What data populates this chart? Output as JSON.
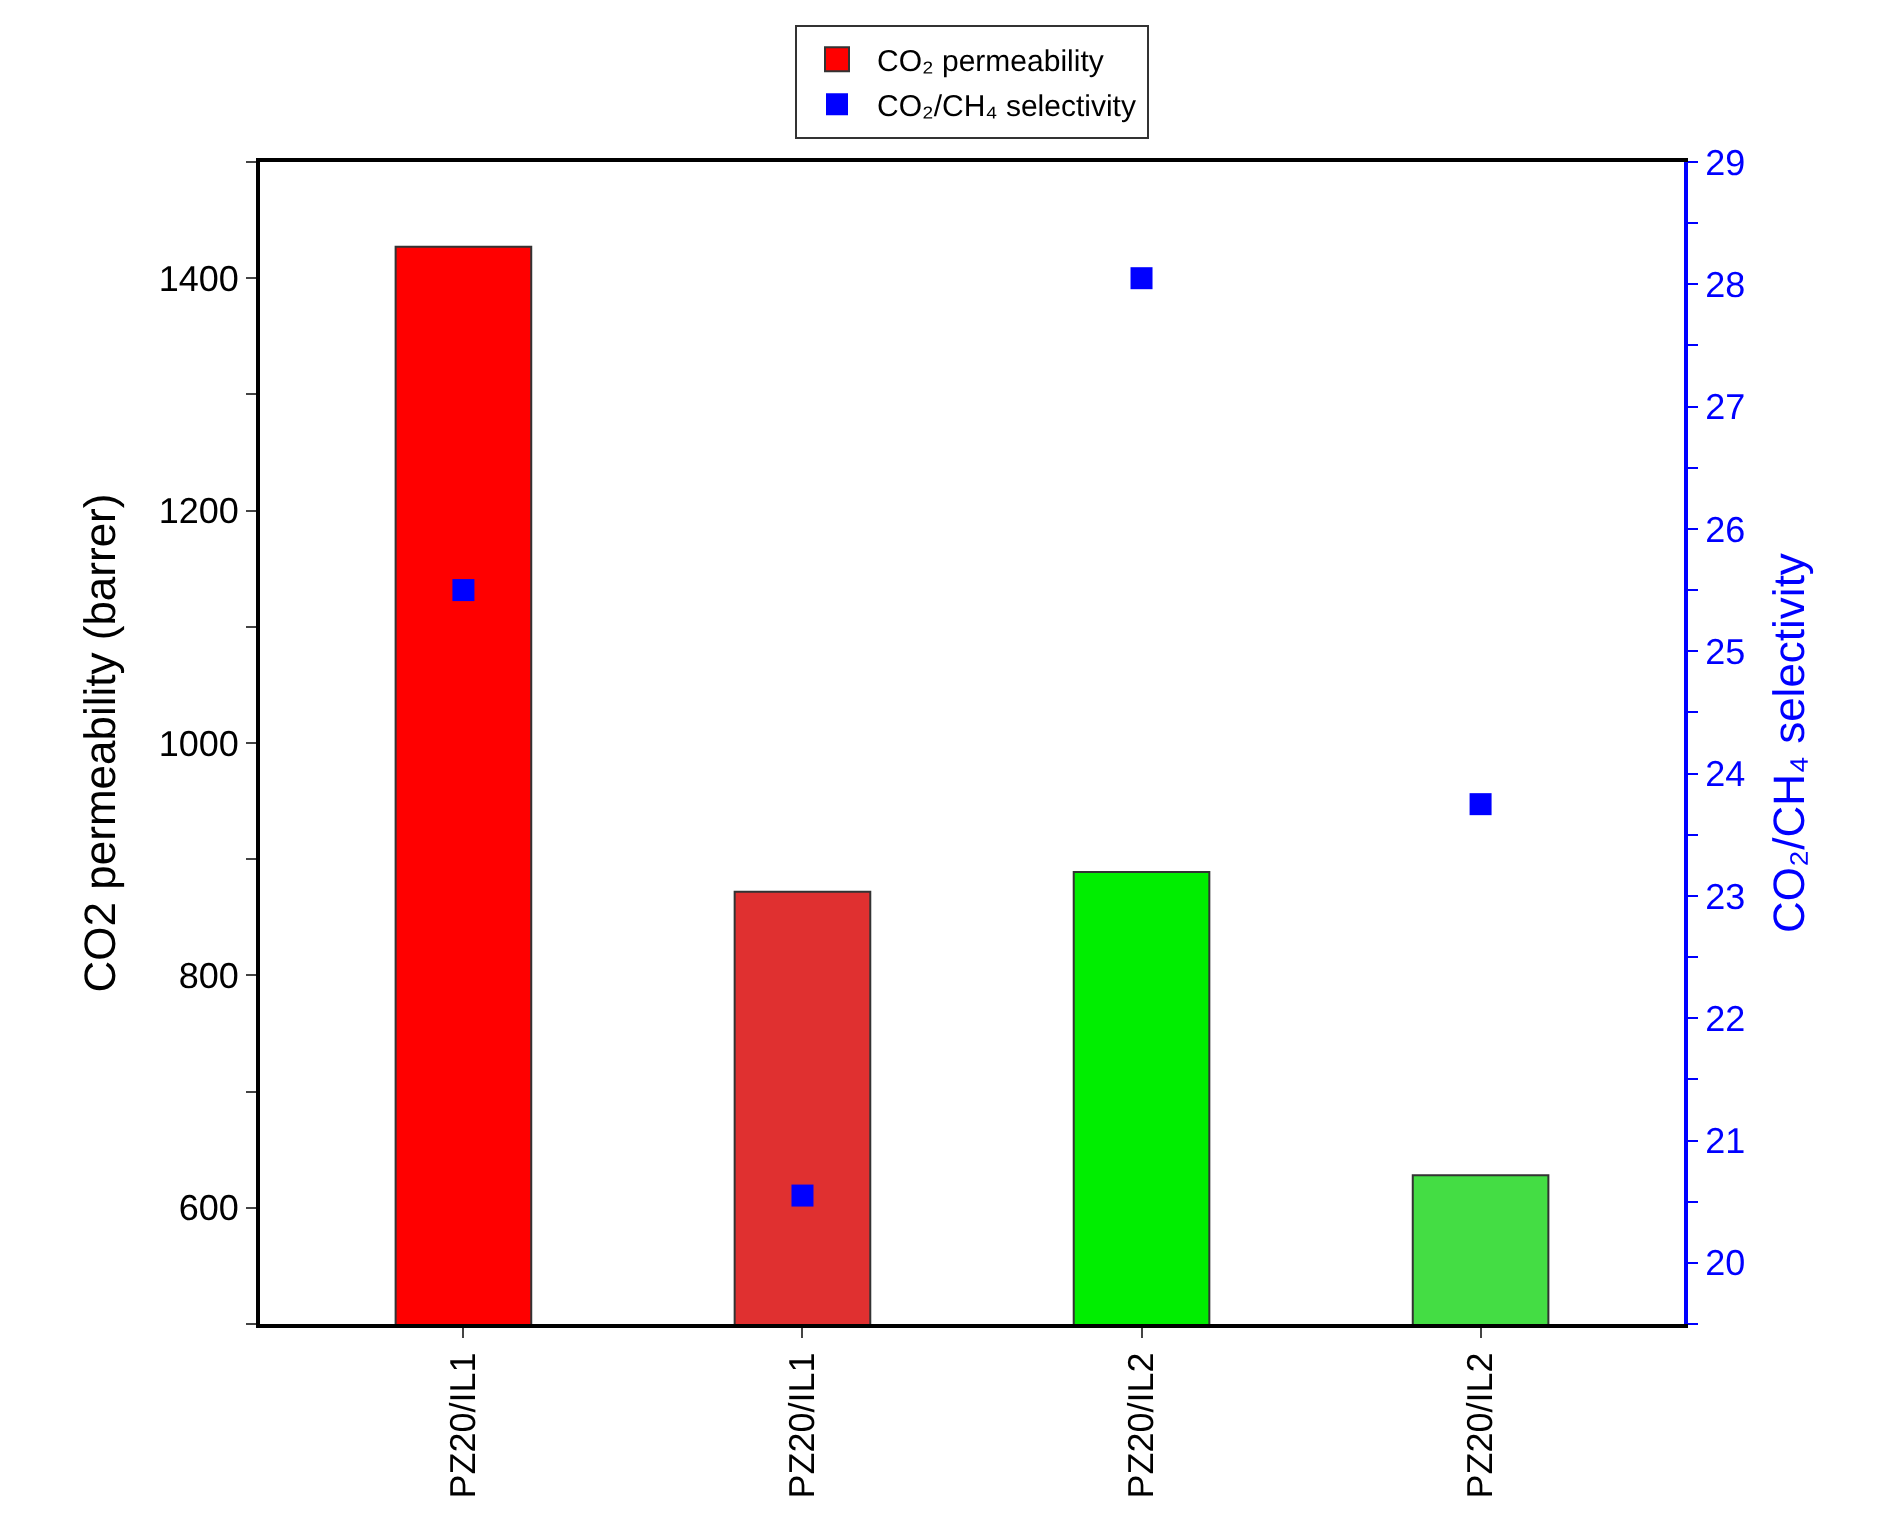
{
  "chart_data": {
    "type": "bar",
    "categories": [
      "PZ20/IL1",
      "PZ20/IL1",
      "PZ20/IL2",
      "PZ20/IL2"
    ],
    "ylabel": "CO2 permeability (barrer)",
    "y2label": "CO₂/CH₄ selectivity",
    "series": [
      {
        "name": "CO₂ permeability",
        "color": "#ff0000",
        "colors": [
          "#ff0000",
          "#e03030",
          "#00ee00",
          "#44dd44"
        ],
        "values": [
          1427,
          872,
          889,
          628
        ]
      },
      {
        "name": "CO₂/CH₄ selectivity",
        "type": "scatter",
        "axis": "y2",
        "color": "#0000ff",
        "marker": "square",
        "values": [
          25.5,
          20.55,
          28.05,
          23.75
        ]
      }
    ],
    "ylim": [
      500,
      1500
    ],
    "yticks": [
      {
        "value": 500,
        "label": null
      },
      600,
      {
        "value": 700,
        "label": null
      },
      800,
      {
        "value": 900,
        "label": null
      },
      1000,
      {
        "value": 1100,
        "label": null
      },
      1200,
      {
        "value": 1300,
        "label": null
      },
      1400,
      {
        "value": 1500,
        "label": null
      }
    ],
    "y2lim": [
      19.5,
      29
    ],
    "y2ticks": [
      {
        "value": 19.5,
        "label": null
      },
      20,
      {
        "value": 20.5,
        "label": null
      },
      21,
      {
        "value": 21.5,
        "label": null
      },
      22,
      {
        "value": 22.5,
        "label": null
      },
      23,
      {
        "value": 23.5,
        "label": null
      },
      24,
      {
        "value": 24.5,
        "label": null
      },
      25,
      {
        "value": 25.5,
        "label": null
      },
      26,
      {
        "value": 26.5,
        "label": null
      },
      27,
      {
        "value": 27.5,
        "label": null
      },
      28,
      {
        "value": 28.5,
        "label": null
      },
      29
    ],
    "legend": "top"
  }
}
